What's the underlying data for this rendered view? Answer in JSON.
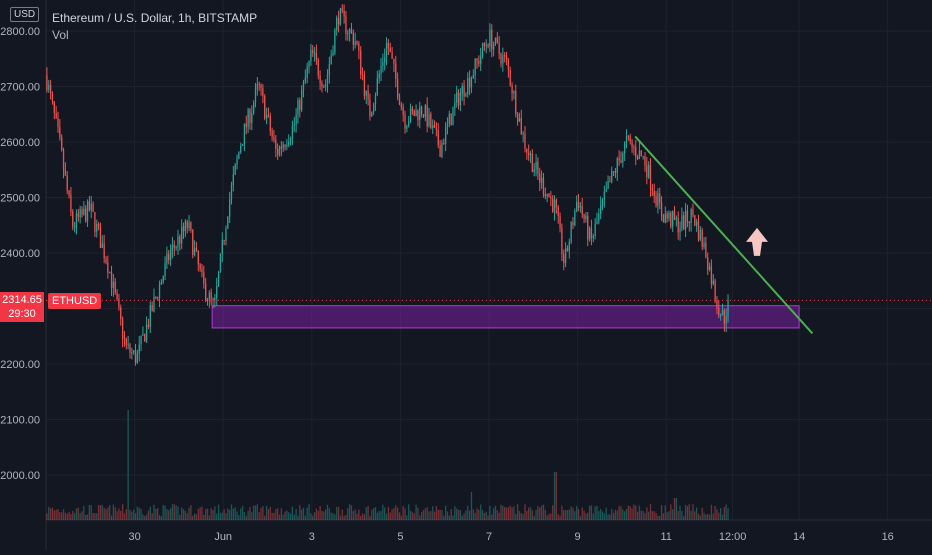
{
  "header": {
    "currency": "USD",
    "title": "Ethereum / U.S. Dollar, 1h, BITSTAMP",
    "volume_label": "Vol"
  },
  "last_price": {
    "value": "2314.65",
    "countdown": "29:30",
    "symbol": "ETHUSD"
  },
  "colors": {
    "background": "#131722",
    "up": "#26a69a",
    "down": "#ef5350",
    "zone_fill": "#7b1fa2",
    "zone_border": "#b13ad6",
    "trendline": "#4caf50",
    "arrow": "#f5c6c4",
    "price_line": "#f23645",
    "text": "#b2b5be"
  },
  "chart_data": {
    "type": "candlestick",
    "symbol": "ETHUSD",
    "interval": "1h",
    "exchange": "BITSTAMP",
    "ylim": [
      1940,
      2850
    ],
    "y_ticks": [
      2800,
      2700,
      2600,
      2500,
      2400,
      2300,
      2200,
      2100,
      2000
    ],
    "y_tick_labels": [
      "2800.00",
      "2700.00",
      "2600.00",
      "2500.00",
      "2400.00",
      "2300.00",
      "2200.00",
      "2100.00",
      "2000.00"
    ],
    "x_ticks": [
      "30",
      "Jun",
      "3",
      "5",
      "7",
      "9",
      "11",
      "12:00",
      "14",
      "16"
    ],
    "x_tick_days": [
      -1,
      1,
      3,
      5,
      7,
      9,
      11,
      12.5,
      14,
      16
    ],
    "xlim": [
      -3.0,
      17.0
    ],
    "last_day": 12.4,
    "anchors": [
      [
        -3.0,
        2720
      ],
      [
        -2.7,
        2600
      ],
      [
        -2.4,
        2450
      ],
      [
        -2.0,
        2480
      ],
      [
        -1.6,
        2380
      ],
      [
        -1.2,
        2230
      ],
      [
        -0.95,
        2210
      ],
      [
        -0.6,
        2300
      ],
      [
        -0.2,
        2400
      ],
      [
        0.2,
        2450
      ],
      [
        0.55,
        2340
      ],
      [
        0.8,
        2300
      ],
      [
        1.1,
        2480
      ],
      [
        1.4,
        2600
      ],
      [
        1.8,
        2700
      ],
      [
        2.2,
        2580
      ],
      [
        2.6,
        2630
      ],
      [
        3.0,
        2760
      ],
      [
        3.3,
        2700
      ],
      [
        3.6,
        2830
      ],
      [
        4.0,
        2780
      ],
      [
        4.3,
        2650
      ],
      [
        4.7,
        2780
      ],
      [
        5.1,
        2640
      ],
      [
        5.5,
        2660
      ],
      [
        5.9,
        2590
      ],
      [
        6.3,
        2680
      ],
      [
        6.6,
        2720
      ],
      [
        7.0,
        2790
      ],
      [
        7.4,
        2740
      ],
      [
        7.8,
        2600
      ],
      [
        8.1,
        2540
      ],
      [
        8.5,
        2480
      ],
      [
        8.7,
        2380
      ],
      [
        9.0,
        2500
      ],
      [
        9.3,
        2420
      ],
      [
        9.7,
        2520
      ],
      [
        10.1,
        2600
      ],
      [
        10.5,
        2570
      ],
      [
        10.9,
        2470
      ],
      [
        11.3,
        2450
      ],
      [
        11.6,
        2470
      ],
      [
        11.9,
        2400
      ],
      [
        12.15,
        2310
      ],
      [
        12.3,
        2280
      ],
      [
        12.4,
        2314.65
      ]
    ],
    "support_zone": {
      "low": 2265,
      "high": 2305,
      "start_day": 0.75,
      "end_day": 14.0
    },
    "trendline": {
      "from": [
        10.3,
        2610
      ],
      "to": [
        14.3,
        2255
      ]
    },
    "last_price_line": 2314.65,
    "volume_spikes": [
      [
        -1.15,
        110
      ],
      [
        6.6,
        28
      ],
      [
        8.5,
        48
      ],
      [
        11.2,
        22
      ]
    ]
  }
}
